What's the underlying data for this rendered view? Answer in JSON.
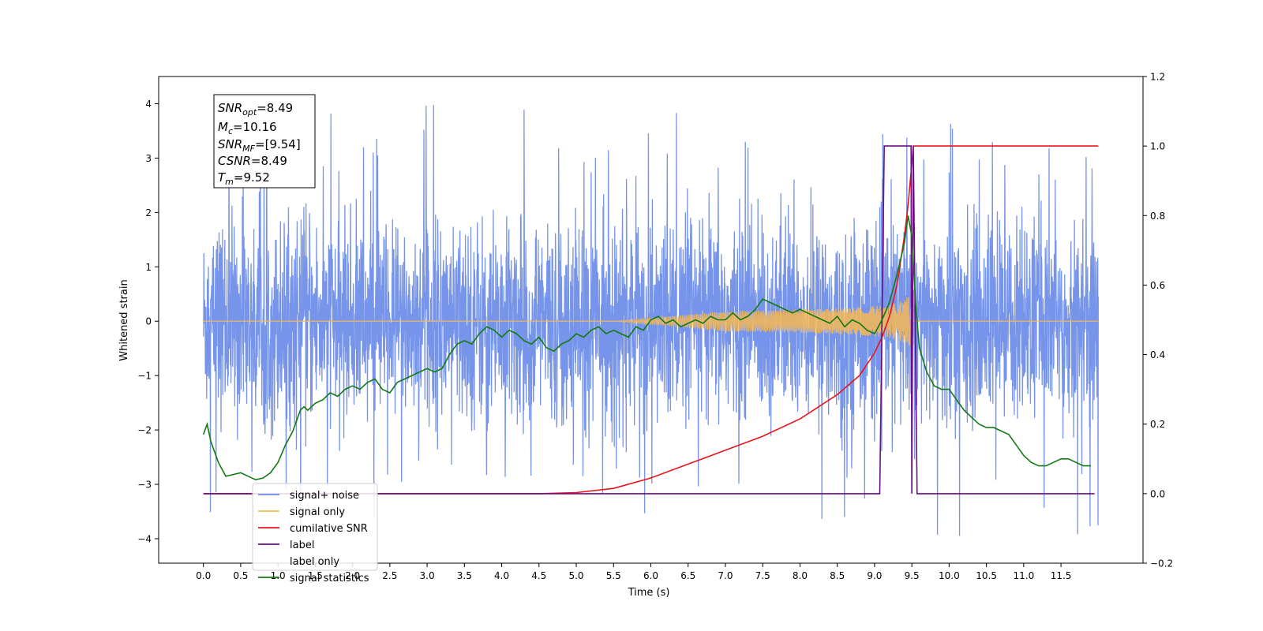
{
  "chart_data": {
    "type": "line",
    "xlabel": "Time (s)",
    "ylabel": "Whitened strain",
    "xlim": [
      -0.6,
      12.6
    ],
    "ylim": [
      -4.45,
      4.5
    ],
    "y2lim": [
      -0.2,
      1.2
    ],
    "x_ticks": [
      "0.0",
      "0.5",
      "1.0",
      "1.5",
      "2.0",
      "2.5",
      "3.0",
      "3.5",
      "4.0",
      "4.5",
      "5.0",
      "5.5",
      "6.0",
      "6.5",
      "7.0",
      "7.5",
      "8.0",
      "8.5",
      "9.0",
      "9.5",
      "10.0",
      "10.5",
      "11.0",
      "11.5"
    ],
    "y_ticks": [
      "4",
      "3",
      "2",
      "1",
      "0",
      "−1",
      "−2",
      "−3",
      "−4"
    ],
    "y2_ticks": [
      "1.2",
      "1.0",
      "0.8",
      "0.6",
      "0.4",
      "0.2",
      "0.0",
      "−0.2"
    ],
    "grid": false,
    "legend_position": "lower-left",
    "annotation": {
      "snr_opt": {
        "sym": "SNR",
        "sub": "opt",
        "val": "=8.49"
      },
      "mc": {
        "sym": "M",
        "sub": "c",
        "val": "=10.16"
      },
      "snr_mf": {
        "sym": "SNR",
        "sub": "MF",
        "val": "=[9.54]"
      },
      "csnr": {
        "sym": "CSNR",
        "val": "=8.49"
      },
      "tm": {
        "sym": "T",
        "sub": "m",
        "val": "=9.52"
      }
    },
    "series": [
      {
        "name": "signal+ noise",
        "color": "#6f8ee8",
        "axis": "left",
        "kind": "noise",
        "approx_std": 0.9,
        "x_range": [
          0.0,
          12.0
        ]
      },
      {
        "name": "signal only",
        "color": "#f7b955",
        "axis": "left",
        "kind": "chirp",
        "merger_time": 9.52,
        "peak_amplitude": 0.7
      },
      {
        "name": "cumilative SNR",
        "color": "#e8141b",
        "axis": "right",
        "x": [
          0.0,
          4.5,
          5.0,
          5.5,
          6.0,
          6.5,
          7.0,
          7.5,
          8.0,
          8.5,
          8.8,
          9.0,
          9.1,
          9.2,
          9.3,
          9.4,
          9.45,
          9.5,
          9.52,
          12.0
        ],
        "y": [
          0.0,
          0.0,
          0.003,
          0.015,
          0.045,
          0.085,
          0.125,
          0.165,
          0.215,
          0.285,
          0.34,
          0.405,
          0.45,
          0.51,
          0.6,
          0.74,
          0.83,
          0.95,
          1.0,
          1.0
        ]
      },
      {
        "name": "label",
        "color": "#6a0d83",
        "axis": "right",
        "x": [
          0.0,
          9.07,
          9.13,
          9.49,
          9.5,
          9.52,
          9.57,
          11.95
        ],
        "y": [
          0.0,
          0.0,
          1.0,
          1.0,
          0.0,
          1.0,
          0.0,
          0.0
        ]
      },
      {
        "name": "label only",
        "color": "#ffffff",
        "axis": "right",
        "hidden": true
      },
      {
        "name": "signal statistics",
        "color": "#137a13",
        "axis": "right",
        "x": [
          0.0,
          0.05,
          0.1,
          0.2,
          0.3,
          0.4,
          0.5,
          0.6,
          0.7,
          0.8,
          0.9,
          1.0,
          1.1,
          1.2,
          1.3,
          1.35,
          1.4,
          1.5,
          1.6,
          1.7,
          1.8,
          1.9,
          2.0,
          2.1,
          2.2,
          2.3,
          2.4,
          2.5,
          2.6,
          2.7,
          2.8,
          2.9,
          3.0,
          3.1,
          3.2,
          3.3,
          3.4,
          3.5,
          3.6,
          3.7,
          3.8,
          3.9,
          4.0,
          4.1,
          4.2,
          4.3,
          4.4,
          4.5,
          4.6,
          4.7,
          4.8,
          4.9,
          5.0,
          5.1,
          5.2,
          5.3,
          5.4,
          5.5,
          5.6,
          5.7,
          5.8,
          5.9,
          6.0,
          6.1,
          6.2,
          6.3,
          6.4,
          6.5,
          6.6,
          6.7,
          6.8,
          6.9,
          7.0,
          7.1,
          7.2,
          7.3,
          7.4,
          7.5,
          7.6,
          7.7,
          7.8,
          7.9,
          8.0,
          8.1,
          8.2,
          8.3,
          8.4,
          8.5,
          8.6,
          8.7,
          8.8,
          8.9,
          9.0,
          9.1,
          9.2,
          9.3,
          9.4,
          9.45,
          9.5,
          9.55,
          9.6,
          9.7,
          9.8,
          9.9,
          10.0,
          10.1,
          10.2,
          10.3,
          10.4,
          10.5,
          10.6,
          10.7,
          10.8,
          10.9,
          11.0,
          11.1,
          11.2,
          11.3,
          11.4,
          11.5,
          11.6,
          11.7,
          11.8,
          11.9
        ],
        "y": [
          0.17,
          0.2,
          0.15,
          0.09,
          0.05,
          0.055,
          0.06,
          0.05,
          0.04,
          0.045,
          0.06,
          0.09,
          0.14,
          0.18,
          0.24,
          0.25,
          0.24,
          0.26,
          0.27,
          0.29,
          0.28,
          0.3,
          0.31,
          0.3,
          0.32,
          0.33,
          0.3,
          0.29,
          0.32,
          0.33,
          0.34,
          0.35,
          0.36,
          0.35,
          0.36,
          0.4,
          0.43,
          0.44,
          0.43,
          0.46,
          0.48,
          0.47,
          0.45,
          0.47,
          0.46,
          0.44,
          0.43,
          0.45,
          0.42,
          0.41,
          0.43,
          0.44,
          0.46,
          0.45,
          0.47,
          0.48,
          0.46,
          0.47,
          0.46,
          0.45,
          0.48,
          0.47,
          0.5,
          0.51,
          0.49,
          0.5,
          0.48,
          0.49,
          0.5,
          0.49,
          0.51,
          0.5,
          0.5,
          0.52,
          0.5,
          0.51,
          0.53,
          0.56,
          0.55,
          0.54,
          0.53,
          0.52,
          0.53,
          0.52,
          0.51,
          0.5,
          0.49,
          0.51,
          0.48,
          0.5,
          0.49,
          0.47,
          0.46,
          0.5,
          0.55,
          0.63,
          0.72,
          0.8,
          0.74,
          0.55,
          0.42,
          0.35,
          0.31,
          0.3,
          0.3,
          0.27,
          0.24,
          0.22,
          0.2,
          0.19,
          0.19,
          0.18,
          0.17,
          0.14,
          0.11,
          0.09,
          0.08,
          0.08,
          0.09,
          0.1,
          0.1,
          0.09,
          0.08,
          0.08
        ]
      }
    ]
  }
}
